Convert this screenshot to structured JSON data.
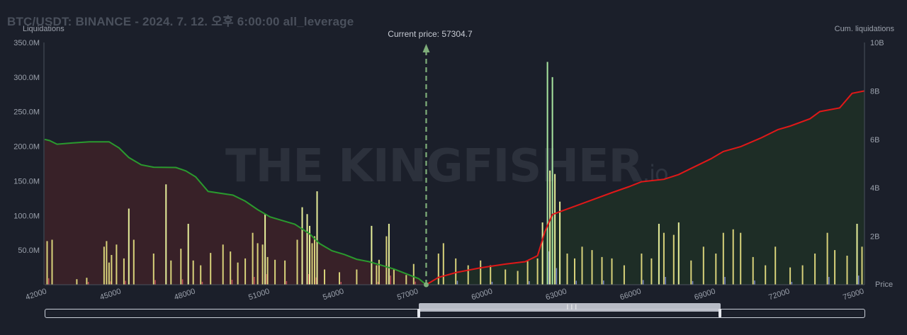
{
  "title": "BTC/USDT: BINANCE - 2024. 7. 12. 오후 6:00:00 all_leverage",
  "watermark": "THE KINGFISHER",
  "watermark_suffix": ".io",
  "current_price_label": "Current price: 57304.7",
  "chart_data": {
    "type": "bar",
    "title": "BTC/USDT: BINANCE - 2024. 7. 12. 오후 6:00:00 all_leverage",
    "ylabel": "Liquidations",
    "y2label": "Cum. liquidations",
    "xlabel": "Price",
    "xlim": [
      41900,
      75000
    ],
    "ylim": [
      0,
      350000000
    ],
    "y2lim": [
      0,
      10000000000
    ],
    "x_ticks": [
      42000,
      45000,
      48000,
      51000,
      54000,
      57000,
      60000,
      63000,
      66000,
      69000,
      72000,
      75000
    ],
    "x_tick_labels": [
      "42000",
      "45000",
      "48000",
      "51000",
      "54000",
      "57000",
      "60000",
      "63000",
      "66000",
      "69000",
      "72000",
      "75000"
    ],
    "y_ticks": [
      50000000,
      100000000,
      150000000,
      200000000,
      250000000,
      300000000,
      350000000
    ],
    "y_tick_labels": [
      "50.0M",
      "100.0M",
      "150.0M",
      "200.0M",
      "250.0M",
      "300.0M",
      "350.0M"
    ],
    "y2_ticks": [
      2000000000,
      4000000000,
      6000000000,
      8000000000,
      10000000000
    ],
    "y2_tick_labels": [
      "2B",
      "4B",
      "6B",
      "8B",
      "10B"
    ],
    "current_price": 57304.7,
    "grid": false,
    "colors": {
      "bar_low": "#d8d27a",
      "bar_high": "#e7ef9a",
      "bar_peak": "#a8e6a0",
      "bar_alt_red": "#c0505a",
      "bar_alt_blue": "#7a86c8",
      "cum_short": "#2a9a2e",
      "cum_long": "#e01818",
      "fill_short": "#3a2228",
      "fill_long": "#1f2e26",
      "current_price_line": "#7fae7a"
    },
    "series": [
      {
        "name": "",
        "axis": "left",
        "values": [
          [
            42000,
            63000000
          ],
          [
            42200,
            65000000
          ],
          [
            43200,
            8000000
          ],
          [
            43600,
            10000000
          ],
          [
            44300,
            55000000
          ],
          [
            44400,
            63000000
          ],
          [
            44500,
            32000000
          ],
          [
            44600,
            43000000
          ],
          [
            44800,
            58000000
          ],
          [
            45100,
            38000000
          ],
          [
            45300,
            110000000
          ],
          [
            45500,
            65000000
          ],
          [
            46300,
            45000000
          ],
          [
            46800,
            145000000
          ],
          [
            47000,
            35000000
          ],
          [
            47400,
            52000000
          ],
          [
            47700,
            88000000
          ],
          [
            47900,
            35000000
          ],
          [
            48200,
            28000000
          ],
          [
            48600,
            46000000
          ],
          [
            49100,
            58000000
          ],
          [
            49400,
            48000000
          ],
          [
            49700,
            32000000
          ],
          [
            50000,
            38000000
          ],
          [
            50300,
            75000000
          ],
          [
            50500,
            60000000
          ],
          [
            50700,
            58000000
          ],
          [
            50800,
            102000000
          ],
          [
            50900,
            40000000
          ],
          [
            51200,
            36000000
          ],
          [
            51600,
            35000000
          ],
          [
            52100,
            65000000
          ],
          [
            52300,
            112000000
          ],
          [
            52500,
            102000000
          ],
          [
            52600,
            85000000
          ],
          [
            52700,
            60000000
          ],
          [
            52800,
            70000000
          ],
          [
            52900,
            135000000
          ],
          [
            53200,
            22000000
          ],
          [
            53800,
            18000000
          ],
          [
            54500,
            22000000
          ],
          [
            55100,
            85000000
          ],
          [
            55300,
            28000000
          ],
          [
            55400,
            36000000
          ],
          [
            55700,
            70000000
          ],
          [
            55800,
            88000000
          ],
          [
            56000,
            22000000
          ],
          [
            56500,
            14000000
          ],
          [
            56800,
            30000000
          ],
          [
            57800,
            45000000
          ],
          [
            58000,
            60000000
          ],
          [
            58500,
            38000000
          ],
          [
            59000,
            28000000
          ],
          [
            59500,
            35000000
          ],
          [
            59900,
            28000000
          ],
          [
            60500,
            22000000
          ],
          [
            61000,
            20000000
          ],
          [
            61400,
            34000000
          ],
          [
            61800,
            38000000
          ],
          [
            62000,
            90000000
          ],
          [
            62200,
            322000000
          ],
          [
            62300,
            165000000
          ],
          [
            62400,
            300000000
          ],
          [
            62500,
            160000000
          ],
          [
            62700,
            120000000
          ],
          [
            63000,
            45000000
          ],
          [
            63300,
            38000000
          ],
          [
            63600,
            55000000
          ],
          [
            64000,
            50000000
          ],
          [
            64400,
            40000000
          ],
          [
            64800,
            38000000
          ],
          [
            65300,
            28000000
          ],
          [
            66000,
            45000000
          ],
          [
            66400,
            38000000
          ],
          [
            66700,
            88000000
          ],
          [
            66900,
            75000000
          ],
          [
            67300,
            72000000
          ],
          [
            67500,
            90000000
          ],
          [
            68000,
            35000000
          ],
          [
            68500,
            55000000
          ],
          [
            69000,
            45000000
          ],
          [
            69300,
            75000000
          ],
          [
            69700,
            80000000
          ],
          [
            70000,
            75000000
          ],
          [
            70500,
            40000000
          ],
          [
            71000,
            28000000
          ],
          [
            71400,
            55000000
          ],
          [
            72000,
            25000000
          ],
          [
            72500,
            28000000
          ],
          [
            73000,
            45000000
          ],
          [
            73500,
            75000000
          ],
          [
            73800,
            50000000
          ],
          [
            74300,
            42000000
          ],
          [
            74700,
            88000000
          ],
          [
            74900,
            55000000
          ]
        ]
      },
      {
        "name": "",
        "axis": "right",
        "side": "short",
        "values": [
          [
            41900,
            6000000000
          ],
          [
            42100,
            5950000000
          ],
          [
            42400,
            5800000000
          ],
          [
            43000,
            5850000000
          ],
          [
            43700,
            5900000000
          ],
          [
            44500,
            5900000000
          ],
          [
            44900,
            5650000000
          ],
          [
            45300,
            5250000000
          ],
          [
            45800,
            4950000000
          ],
          [
            46300,
            4850000000
          ],
          [
            47200,
            4840000000
          ],
          [
            47600,
            4700000000
          ],
          [
            48000,
            4450000000
          ],
          [
            48500,
            3850000000
          ],
          [
            49500,
            3700000000
          ],
          [
            50000,
            3450000000
          ],
          [
            50500,
            3100000000
          ],
          [
            51000,
            2800000000
          ],
          [
            51500,
            2650000000
          ],
          [
            52000,
            2500000000
          ],
          [
            52600,
            2100000000
          ],
          [
            53000,
            1700000000
          ],
          [
            53500,
            1400000000
          ],
          [
            54000,
            1250000000
          ],
          [
            54500,
            1050000000
          ],
          [
            55000,
            950000000
          ],
          [
            55500,
            800000000
          ],
          [
            56000,
            650000000
          ],
          [
            56500,
            450000000
          ],
          [
            57000,
            250000000
          ],
          [
            57304.7,
            0
          ]
        ]
      },
      {
        "name": "",
        "axis": "right",
        "side": "long",
        "values": [
          [
            57304.7,
            0
          ],
          [
            57800,
            300000000
          ],
          [
            58500,
            500000000
          ],
          [
            59500,
            700000000
          ],
          [
            60500,
            850000000
          ],
          [
            61300,
            950000000
          ],
          [
            61800,
            1200000000
          ],
          [
            62100,
            2200000000
          ],
          [
            62400,
            2900000000
          ],
          [
            63200,
            3200000000
          ],
          [
            64000,
            3500000000
          ],
          [
            64800,
            3800000000
          ],
          [
            65500,
            4050000000
          ],
          [
            66000,
            4250000000
          ],
          [
            66900,
            4350000000
          ],
          [
            67500,
            4550000000
          ],
          [
            68000,
            4800000000
          ],
          [
            68800,
            5200000000
          ],
          [
            69300,
            5500000000
          ],
          [
            70000,
            5700000000
          ],
          [
            70800,
            6050000000
          ],
          [
            71500,
            6400000000
          ],
          [
            72000,
            6550000000
          ],
          [
            72800,
            6850000000
          ],
          [
            73200,
            7150000000
          ],
          [
            74000,
            7300000000
          ],
          [
            74500,
            7900000000
          ],
          [
            75000,
            8000000000
          ]
        ]
      }
    ]
  }
}
